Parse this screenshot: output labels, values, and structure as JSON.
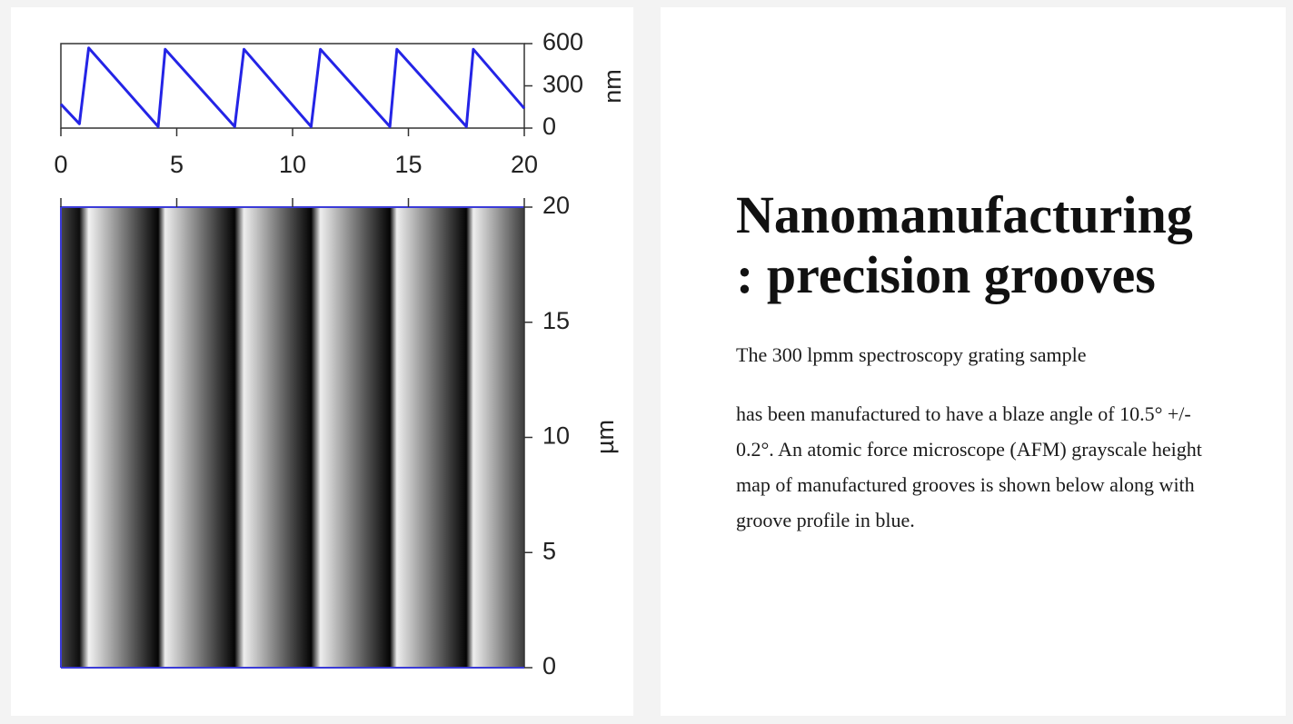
{
  "figure": {
    "profile": {
      "type": "line",
      "x": [
        0,
        0.8,
        1.2,
        4.2,
        4.5,
        7.5,
        7.9,
        10.8,
        11.2,
        14.2,
        14.5,
        17.5,
        17.8,
        20
      ],
      "values": [
        170,
        30,
        570,
        10,
        560,
        10,
        560,
        10,
        560,
        10,
        560,
        10,
        560,
        140
      ],
      "color": "#2424e6",
      "xlim": [
        0,
        20
      ],
      "xticks": [
        0,
        5,
        10,
        15,
        20
      ],
      "ylim": [
        0,
        600
      ],
      "yticks": [
        0,
        300,
        600
      ],
      "ylabel": "nm"
    },
    "height_map": {
      "type": "heatmap",
      "ylim": [
        0,
        20
      ],
      "yticks": [
        0,
        5,
        10,
        15,
        20
      ],
      "ylabel": "µm"
    }
  },
  "heading": [
    "Nanomanufacturing",
    ": precision grooves"
  ],
  "paragraphs": [
    "The 300 lpmm spectroscopy grating sample",
    "has been manufactured to have a blaze angle of 10.5° +/- 0.2°. An atomic force microscope (AFM) grayscale height map of manufactured grooves is shown below along with groove profile in blue."
  ]
}
